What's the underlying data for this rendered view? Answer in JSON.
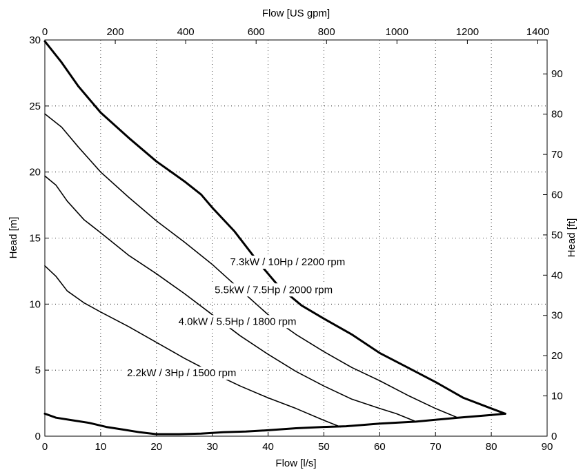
{
  "chart_data": {
    "type": "line",
    "xlabel": "Flow [l/s]",
    "ylabel": "Head [m]",
    "x2label": "Flow [US gpm]",
    "y2label": "Head [ft]",
    "xlim": [
      0,
      90
    ],
    "ylim": [
      0,
      30
    ],
    "x2lim": [
      0,
      1426.5
    ],
    "y2lim": [
      0,
      98.43
    ],
    "xticks": [
      0,
      10,
      20,
      30,
      40,
      50,
      60,
      70,
      80,
      90
    ],
    "yticks": [
      0,
      5,
      10,
      15,
      20,
      25,
      30
    ],
    "x2ticks": [
      0,
      200,
      400,
      600,
      800,
      1000,
      1200,
      1400
    ],
    "y2ticks": [
      0,
      10,
      20,
      30,
      40,
      50,
      60,
      70,
      80,
      90
    ],
    "grid": true,
    "series": [
      {
        "name": "7.3kW / 10Hp / 2200 rpm",
        "bold": true,
        "label_at": [
          43.5,
          13.2
        ],
        "points": [
          [
            0,
            29.9
          ],
          [
            3,
            28.3
          ],
          [
            6,
            26.5
          ],
          [
            10,
            24.5
          ],
          [
            15,
            22.6
          ],
          [
            20,
            20.8
          ],
          [
            25,
            19.3
          ],
          [
            28,
            18.3
          ],
          [
            30,
            17.3
          ],
          [
            34,
            15.5
          ],
          [
            38,
            13.3
          ],
          [
            42,
            11.3
          ],
          [
            46,
            9.9
          ],
          [
            50,
            8.9
          ],
          [
            55,
            7.7
          ],
          [
            60,
            6.3
          ],
          [
            65,
            5.2
          ],
          [
            70,
            4.1
          ],
          [
            75,
            2.9
          ],
          [
            80,
            2.1
          ],
          [
            82.5,
            1.7
          ]
        ]
      },
      {
        "name": "5.5kW / 7.5Hp / 2000 rpm",
        "bold": false,
        "label_at": [
          41,
          11.1
        ],
        "points": [
          [
            0,
            24.4
          ],
          [
            3,
            23.4
          ],
          [
            6,
            21.9
          ],
          [
            10,
            20.0
          ],
          [
            15,
            18.1
          ],
          [
            20,
            16.3
          ],
          [
            25,
            14.7
          ],
          [
            30,
            13.0
          ],
          [
            35,
            11.1
          ],
          [
            40,
            9.2
          ],
          [
            45,
            7.7
          ],
          [
            50,
            6.4
          ],
          [
            55,
            5.2
          ],
          [
            60,
            4.2
          ],
          [
            65,
            3.1
          ],
          [
            70,
            2.1
          ],
          [
            74,
            1.4
          ]
        ]
      },
      {
        "name": "4.0kW / 5.5Hp / 1800 rpm",
        "bold": false,
        "label_at": [
          34.5,
          8.7
        ],
        "points": [
          [
            0,
            19.7
          ],
          [
            2,
            19.0
          ],
          [
            4,
            17.8
          ],
          [
            7,
            16.4
          ],
          [
            10,
            15.4
          ],
          [
            15,
            13.7
          ],
          [
            20,
            12.3
          ],
          [
            25,
            10.8
          ],
          [
            30,
            9.2
          ],
          [
            35,
            7.6
          ],
          [
            40,
            6.2
          ],
          [
            45,
            4.9
          ],
          [
            50,
            3.8
          ],
          [
            55,
            2.8
          ],
          [
            60,
            2.1
          ],
          [
            63,
            1.7
          ],
          [
            66.5,
            1.1
          ]
        ]
      },
      {
        "name": "2.2kW / 3Hp / 1500 rpm",
        "bold": false,
        "label_at": [
          24.5,
          4.8
        ],
        "points": [
          [
            0,
            12.9
          ],
          [
            2,
            12.1
          ],
          [
            4,
            11.0
          ],
          [
            7,
            10.1
          ],
          [
            10,
            9.4
          ],
          [
            15,
            8.3
          ],
          [
            20,
            7.1
          ],
          [
            25,
            5.9
          ],
          [
            30,
            4.8
          ],
          [
            35,
            3.8
          ],
          [
            40,
            2.9
          ],
          [
            45,
            2.1
          ],
          [
            50,
            1.2
          ],
          [
            53,
            0.7
          ]
        ]
      },
      {
        "name": "",
        "bold": true,
        "label_at": null,
        "points": [
          [
            0,
            1.7
          ],
          [
            2,
            1.4
          ],
          [
            5,
            1.2
          ],
          [
            8,
            1.0
          ],
          [
            11,
            0.7
          ],
          [
            14,
            0.5
          ],
          [
            17,
            0.3
          ],
          [
            20,
            0.15
          ],
          [
            24,
            0.15
          ],
          [
            28,
            0.2
          ],
          [
            32,
            0.3
          ],
          [
            36,
            0.35
          ],
          [
            40,
            0.45
          ],
          [
            45,
            0.6
          ],
          [
            50,
            0.7
          ],
          [
            54,
            0.75
          ],
          [
            60,
            0.95
          ],
          [
            66.5,
            1.1
          ],
          [
            74,
            1.4
          ],
          [
            80,
            1.6
          ],
          [
            82.5,
            1.7
          ]
        ]
      }
    ]
  }
}
